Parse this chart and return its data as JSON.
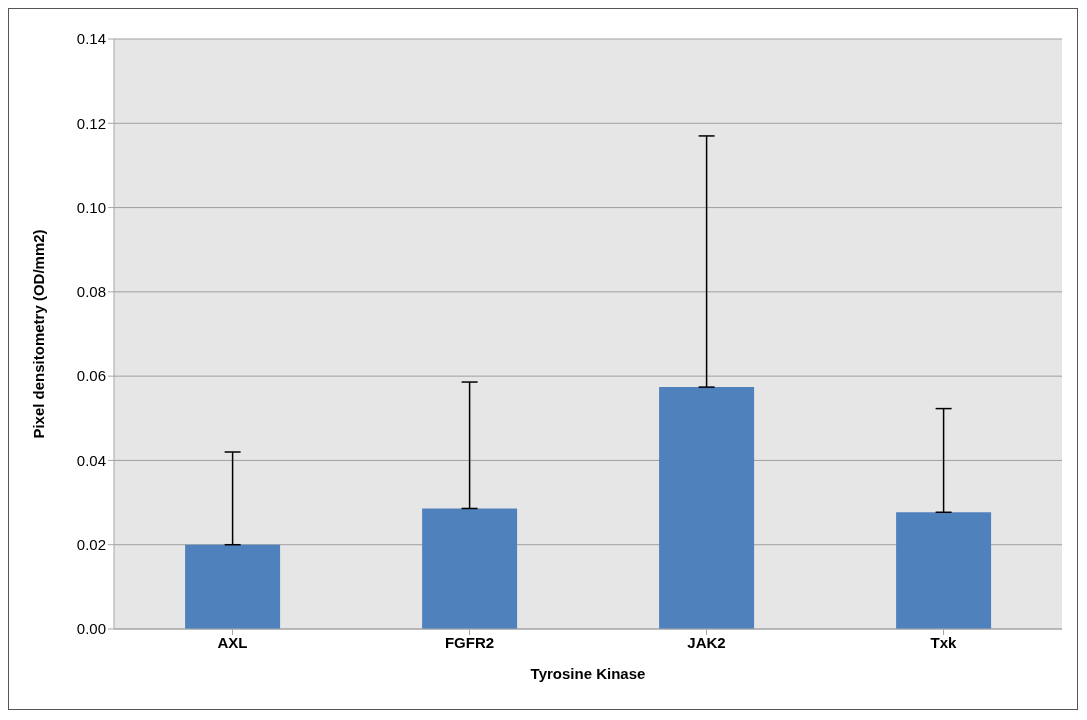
{
  "chart_data": {
    "type": "bar",
    "xlabel": "Tyrosine Kinase",
    "ylabel": "Pixel densitometry (OD/mm2)",
    "categories": [
      "AXL",
      "FGFR2",
      "JAK2",
      "Txk"
    ],
    "values": [
      0.02,
      0.0286,
      0.0574,
      0.0277
    ],
    "errors": [
      [
        0.02,
        0.042
      ],
      [
        0.0286,
        0.0586
      ],
      [
        0.0574,
        0.117
      ],
      [
        0.0277,
        0.0523
      ]
    ],
    "color": "#4f81bd",
    "ylim": [
      0,
      0.14
    ],
    "yticks": [
      {
        "value": 0,
        "label": "0.00"
      },
      {
        "value": 0.02,
        "label": "0.02"
      },
      {
        "value": 0.04,
        "label": "0.04"
      },
      {
        "value": 0.06,
        "label": "0.06"
      },
      {
        "value": 0.08,
        "label": "0.08"
      },
      {
        "value": 0.1,
        "label": "0.10"
      },
      {
        "value": 0.12,
        "label": "0.12"
      },
      {
        "value": 0.14,
        "label": "0.14"
      }
    ],
    "grid": "y"
  }
}
